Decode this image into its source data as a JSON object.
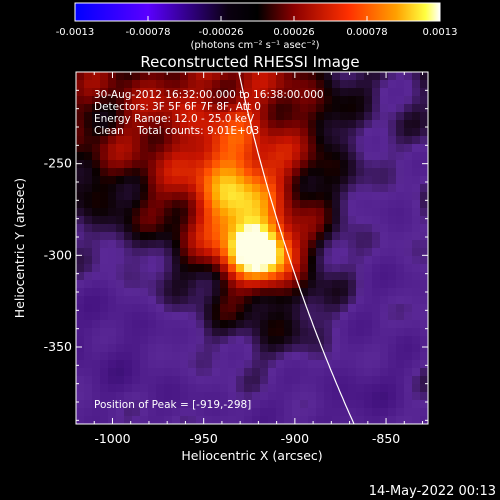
{
  "colorbar": {
    "tick_labels": [
      "-0.0013",
      "-0.00078",
      "-0.00026",
      "0.00026",
      "0.00078",
      "0.0013"
    ],
    "units": "(photons cm⁻² s⁻¹ asec⁻²)",
    "range": [
      -0.0013,
      0.0013
    ],
    "colors": [
      "#0000ff",
      "#7f00ff",
      "#000000",
      "#8b0000",
      "#ff3000",
      "#ffa000",
      "#ffff00",
      "#ffffff"
    ]
  },
  "plot": {
    "title": "Reconstructed RHESSI Image",
    "info_lines": [
      "30-Aug-2012 16:32:00.000 to 16:38:00.000",
      "Detectors: 3F 5F 6F 7F 8F, Att 0",
      "Energy Range: 12.0 - 25.0 keV",
      "Clean    Total counts: 9.01E+03"
    ],
    "peak_text": "Position of Peak = [-919,-298]",
    "xlabel": "Heliocentric X (arcsec)",
    "ylabel": "Heliocentric Y (arcsec)",
    "x_ticks": [
      "-1000",
      "-950",
      "-900",
      "-850"
    ],
    "y_ticks": [
      "-250",
      "-300",
      "-350"
    ],
    "x_tick_values": [
      -1000,
      -950,
      -900,
      -850
    ],
    "y_tick_values": [
      -250,
      -300,
      -350
    ],
    "xlim": [
      -1020,
      -827
    ],
    "ylim": [
      -392,
      -200
    ],
    "peak": [
      -919,
      -298
    ],
    "limb_color": "#ffffff"
  },
  "footer": {
    "timestamp": "14-May-2022 00:13"
  }
}
